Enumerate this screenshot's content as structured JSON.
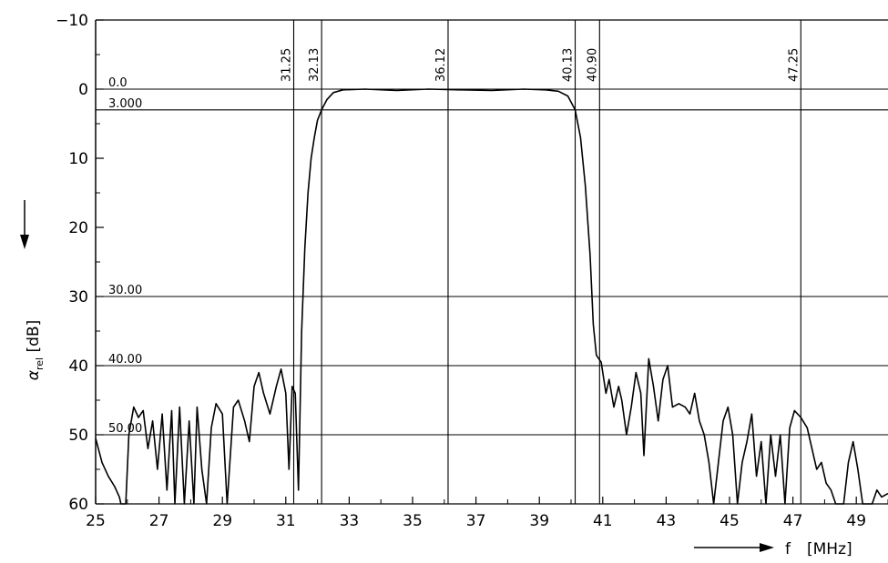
{
  "chart_data": {
    "type": "line",
    "xlabel": "f",
    "xunit": "[MHz]",
    "ylabel": "α",
    "ylabel_sub": "rel",
    "yunit": "[dB]",
    "y_inverted": true,
    "xlim": [
      25,
      50
    ],
    "ylim": [
      -10,
      60
    ],
    "x_ticks": [
      25,
      27,
      29,
      31,
      33,
      35,
      37,
      39,
      41,
      43,
      45,
      47,
      49
    ],
    "x_tick_labels": [
      "25",
      "27",
      "29",
      "31",
      "33",
      "35",
      "37",
      "39",
      "41",
      "43",
      "45",
      "47",
      "49"
    ],
    "y_ticks": [
      -10,
      0,
      10,
      20,
      30,
      40,
      50,
      60
    ],
    "y_tick_labels": [
      "−10",
      "0",
      "10",
      "20",
      "30",
      "40",
      "50",
      "60"
    ],
    "vertical_markers": [
      {
        "x": 31.25,
        "label": "31.25"
      },
      {
        "x": 32.13,
        "label": "32.13"
      },
      {
        "x": 36.12,
        "label": "36.12"
      },
      {
        "x": 40.13,
        "label": "40.13"
      },
      {
        "x": 40.9,
        "label": "40.90"
      },
      {
        "x": 47.25,
        "label": "47.25"
      }
    ],
    "horizontal_markers": [
      {
        "y": 0.0,
        "label": "0.0"
      },
      {
        "y": 3.0,
        "label": "3.000"
      },
      {
        "y": 30.0,
        "label": "30.00"
      },
      {
        "y": 40.0,
        "label": "40.00"
      },
      {
        "y": 50.0,
        "label": "50.00"
      }
    ],
    "series": [
      {
        "points": [
          [
            25.0,
            50.5
          ],
          [
            25.2,
            54
          ],
          [
            25.4,
            56
          ],
          [
            25.6,
            57.5
          ],
          [
            25.75,
            59
          ],
          [
            25.8,
            60
          ],
          [
            25.95,
            60
          ],
          [
            26.05,
            50
          ],
          [
            26.2,
            46
          ],
          [
            26.35,
            47.5
          ],
          [
            26.5,
            46.5
          ],
          [
            26.65,
            52
          ],
          [
            26.8,
            48
          ],
          [
            26.95,
            55
          ],
          [
            27.1,
            47
          ],
          [
            27.25,
            58
          ],
          [
            27.4,
            46.5
          ],
          [
            27.5,
            60
          ],
          [
            27.65,
            46
          ],
          [
            27.8,
            60
          ],
          [
            27.95,
            48
          ],
          [
            28.1,
            60
          ],
          [
            28.2,
            46
          ],
          [
            28.35,
            55
          ],
          [
            28.5,
            60
          ],
          [
            28.65,
            49
          ],
          [
            28.8,
            45.5
          ],
          [
            29.0,
            47
          ],
          [
            29.15,
            60
          ],
          [
            29.35,
            46
          ],
          [
            29.5,
            45
          ],
          [
            29.7,
            48
          ],
          [
            29.85,
            51
          ],
          [
            30.0,
            43
          ],
          [
            30.15,
            41
          ],
          [
            30.3,
            44
          ],
          [
            30.5,
            47
          ],
          [
            30.7,
            43
          ],
          [
            30.85,
            40.5
          ],
          [
            31.0,
            44
          ],
          [
            31.1,
            55
          ],
          [
            31.2,
            43
          ],
          [
            31.3,
            44
          ],
          [
            31.4,
            58
          ],
          [
            31.5,
            35
          ],
          [
            31.6,
            23
          ],
          [
            31.7,
            15
          ],
          [
            31.8,
            10
          ],
          [
            31.9,
            7
          ],
          [
            32.0,
            4.5
          ],
          [
            32.13,
            3.0
          ],
          [
            32.3,
            1.5
          ],
          [
            32.5,
            0.5
          ],
          [
            32.8,
            0.1
          ],
          [
            33.5,
            0.0
          ],
          [
            34.5,
            0.2
          ],
          [
            35.5,
            0.0
          ],
          [
            36.5,
            0.1
          ],
          [
            37.5,
            0.2
          ],
          [
            38.5,
            0.0
          ],
          [
            39.2,
            0.1
          ],
          [
            39.6,
            0.3
          ],
          [
            39.9,
            1.0
          ],
          [
            40.13,
            3.0
          ],
          [
            40.3,
            7
          ],
          [
            40.45,
            14
          ],
          [
            40.6,
            24
          ],
          [
            40.7,
            34
          ],
          [
            40.8,
            38.5
          ],
          [
            40.95,
            39.5
          ],
          [
            41.1,
            44
          ],
          [
            41.2,
            42
          ],
          [
            41.35,
            46
          ],
          [
            41.5,
            43
          ],
          [
            41.6,
            45
          ],
          [
            41.75,
            50
          ],
          [
            41.9,
            46
          ],
          [
            42.05,
            41
          ],
          [
            42.2,
            44
          ],
          [
            42.3,
            53
          ],
          [
            42.45,
            39
          ],
          [
            42.6,
            43
          ],
          [
            42.75,
            48
          ],
          [
            42.9,
            42
          ],
          [
            43.05,
            40
          ],
          [
            43.2,
            46
          ],
          [
            43.4,
            45.5
          ],
          [
            43.6,
            46
          ],
          [
            43.75,
            47
          ],
          [
            43.9,
            44
          ],
          [
            44.05,
            48
          ],
          [
            44.2,
            50
          ],
          [
            44.35,
            54
          ],
          [
            44.5,
            60
          ],
          [
            44.65,
            54
          ],
          [
            44.8,
            48
          ],
          [
            44.95,
            46
          ],
          [
            45.1,
            50
          ],
          [
            45.25,
            60
          ],
          [
            45.4,
            54
          ],
          [
            45.55,
            51
          ],
          [
            45.7,
            47
          ],
          [
            45.85,
            56
          ],
          [
            46.0,
            51
          ],
          [
            46.15,
            60
          ],
          [
            46.3,
            50
          ],
          [
            46.45,
            56
          ],
          [
            46.6,
            50
          ],
          [
            46.75,
            60
          ],
          [
            46.9,
            49
          ],
          [
            47.05,
            46.5
          ],
          [
            47.25,
            47.5
          ],
          [
            47.45,
            49
          ],
          [
            47.6,
            52
          ],
          [
            47.75,
            55
          ],
          [
            47.9,
            54
          ],
          [
            48.05,
            57
          ],
          [
            48.2,
            58
          ],
          [
            48.35,
            60
          ],
          [
            48.6,
            60
          ],
          [
            48.75,
            54
          ],
          [
            48.9,
            51
          ],
          [
            49.05,
            55
          ],
          [
            49.2,
            60
          ],
          [
            49.5,
            60
          ],
          [
            49.65,
            58
          ],
          [
            49.8,
            59
          ],
          [
            50.0,
            58.5
          ]
        ]
      }
    ]
  }
}
